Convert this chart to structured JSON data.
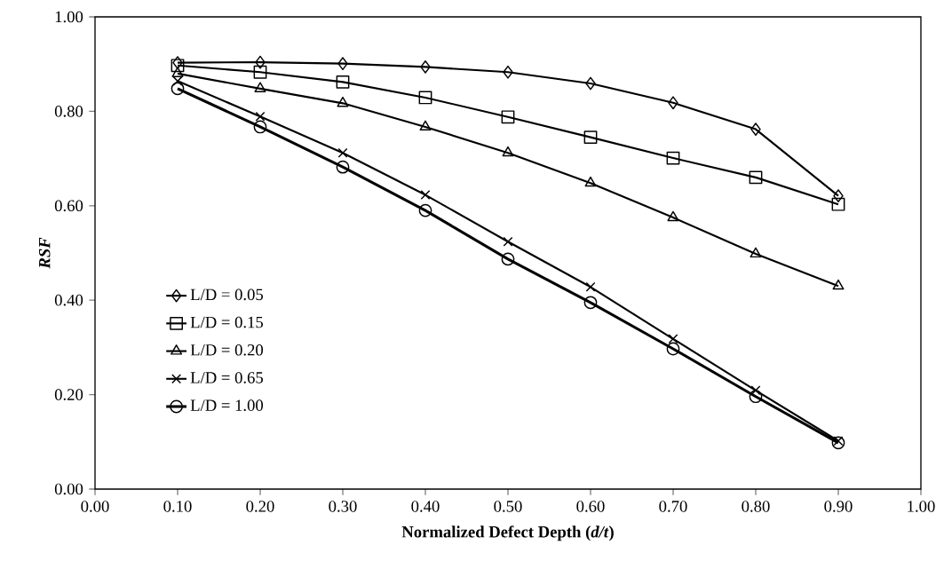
{
  "chart_data": {
    "type": "line",
    "xlabel": "Normalized Defect Depth (*d/t*)",
    "ylabel": "RSF",
    "x": [
      0.1,
      0.2,
      0.3,
      0.4,
      0.5,
      0.6,
      0.7,
      0.8,
      0.9
    ],
    "series": [
      {
        "name": "L/D = 0.05",
        "color": "#000000",
        "marker": "diamond",
        "values": [
          0.903,
          0.904,
          0.901,
          0.894,
          0.883,
          0.859,
          0.818,
          0.762,
          0.621
        ]
      },
      {
        "name": "L/D = 0.15",
        "color": "#000000",
        "marker": "square",
        "values": [
          0.897,
          0.883,
          0.862,
          0.829,
          0.788,
          0.745,
          0.701,
          0.66,
          0.603
        ]
      },
      {
        "name": "L/D = 0.20",
        "color": "#000000",
        "marker": "triangle",
        "values": [
          0.88,
          0.848,
          0.817,
          0.767,
          0.712,
          0.648,
          0.575,
          0.498,
          0.43
        ]
      },
      {
        "name": "L/D = 0.65",
        "color": "#000000",
        "marker": "cross",
        "values": [
          0.864,
          0.789,
          0.712,
          0.623,
          0.524,
          0.428,
          0.318,
          0.209,
          0.102
        ]
      },
      {
        "name": "L/D = 1.00",
        "color": "#000000",
        "marker": "circle",
        "values": [
          0.848,
          0.767,
          0.682,
          0.59,
          0.487,
          0.395,
          0.297,
          0.196,
          0.098
        ]
      }
    ],
    "xlim": [
      0,
      1
    ],
    "ylim": [
      0,
      1
    ],
    "xticks": [
      {
        "value": 0,
        "label": "0.00"
      },
      {
        "value": 0.1,
        "label": "0.10"
      },
      {
        "value": 0.2,
        "label": "0.20"
      },
      {
        "value": 0.3,
        "label": "0.30"
      },
      {
        "value": 0.4,
        "label": "0.40"
      },
      {
        "value": 0.5,
        "label": "0.50"
      },
      {
        "value": 0.6,
        "label": "0.60"
      },
      {
        "value": 0.7,
        "label": "0.70"
      },
      {
        "value": 0.8,
        "label": "0.80"
      },
      {
        "value": 0.9,
        "label": "0.90"
      },
      {
        "value": 1,
        "label": "1.00"
      }
    ],
    "yticks": [
      {
        "value": 0,
        "label": "0.00"
      },
      {
        "value": 0.2,
        "label": "0.20"
      },
      {
        "value": 0.4,
        "label": "0.40"
      },
      {
        "value": 0.6,
        "label": "0.60"
      },
      {
        "value": 0.8,
        "label": "0.80"
      },
      {
        "value": 1,
        "label": "1.00"
      }
    ],
    "legend": "left",
    "grid": false,
    "line_style": "solid"
  }
}
